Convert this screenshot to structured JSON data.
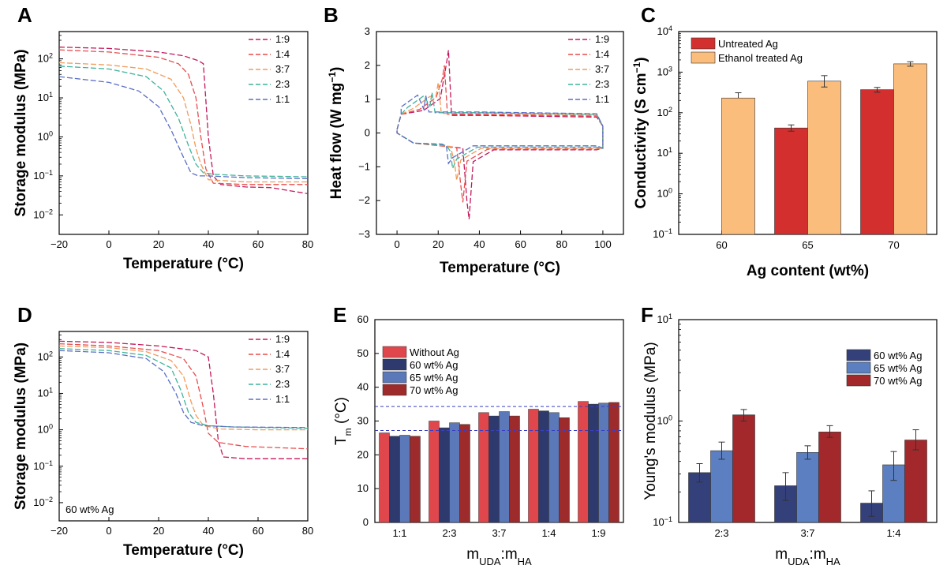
{
  "figure": {
    "panel_labels": [
      "A",
      "B",
      "C",
      "D",
      "E",
      "F"
    ]
  },
  "chart_data": [
    {
      "panel": "A",
      "type": "line",
      "xlabel": "Temperature (°C)",
      "ylabel": "Storage modulus (MPa)",
      "xlim": [
        -20,
        80
      ],
      "ylim_log10": [
        -2.5,
        2.7
      ],
      "yscale": "log",
      "xticks": [
        "−20",
        "0",
        "20",
        "40",
        "60",
        "80"
      ],
      "legend": [
        "1:9",
        "1:4",
        "3:7",
        "2:3",
        "1:1"
      ],
      "colors": [
        "#c2185b",
        "#e84c4c",
        "#f39a5a",
        "#3fb39a",
        "#5b6ec4"
      ],
      "series": [
        {
          "name": "1:9",
          "x": [
            -20,
            0,
            20,
            30,
            36,
            38,
            40,
            42,
            45,
            55,
            65,
            80
          ],
          "y": [
            200,
            185,
            150,
            120,
            90,
            75,
            1.0,
            0.1,
            0.06,
            0.052,
            0.05,
            0.035
          ]
        },
        {
          "name": "1:4",
          "x": [
            -20,
            0,
            20,
            28,
            32,
            35,
            37,
            39,
            42,
            55,
            80
          ],
          "y": [
            170,
            150,
            110,
            75,
            40,
            10,
            1.0,
            0.15,
            0.065,
            0.06,
            0.06
          ]
        },
        {
          "name": "3:7",
          "x": [
            -20,
            0,
            15,
            25,
            30,
            33,
            35,
            37,
            40,
            55,
            80
          ],
          "y": [
            80,
            70,
            55,
            30,
            10,
            2.0,
            0.5,
            0.2,
            0.08,
            0.07,
            0.07
          ]
        },
        {
          "name": "2:3",
          "x": [
            -20,
            0,
            15,
            22,
            28,
            32,
            35,
            38,
            42,
            55,
            80
          ],
          "y": [
            65,
            55,
            35,
            15,
            3,
            0.6,
            0.2,
            0.12,
            0.11,
            0.1,
            0.095
          ]
        },
        {
          "name": "1:1",
          "x": [
            -20,
            0,
            12,
            20,
            25,
            30,
            33,
            36,
            40,
            55,
            80
          ],
          "y": [
            35,
            25,
            15,
            6,
            1.5,
            0.3,
            0.12,
            0.1,
            0.1,
            0.09,
            0.085
          ]
        }
      ]
    },
    {
      "panel": "B",
      "type": "line",
      "xlabel": "Temperature (°C)",
      "ylabel": "Heat flow (W mg-1)",
      "xlim": [
        -10,
        110
      ],
      "ylim": [
        -3,
        3
      ],
      "xticks": [
        "0",
        "20",
        "40",
        "60",
        "80",
        "100"
      ],
      "yticks": [
        "−3",
        "−2",
        "−1",
        "0",
        "1",
        "2",
        "3"
      ],
      "legend": [
        "1:9",
        "1:4",
        "3:7",
        "2:3",
        "1:1"
      ],
      "colors": [
        "#c2185b",
        "#e84c4c",
        "#f39a5a",
        "#3fb39a",
        "#5b6ec4"
      ],
      "peaks": [
        {
          "name": "1:9",
          "heat_peak_t": 25,
          "heat_peak_v": 2.45,
          "cool_peak_t": 35,
          "cool_peak_v": -2.55,
          "base_hi": 0.52,
          "base_lo": -0.5
        },
        {
          "name": "1:4",
          "heat_peak_t": 23,
          "heat_peak_v": 2.0,
          "cool_peak_t": 32,
          "cool_peak_v": -2.05,
          "base_hi": 0.55,
          "base_lo": -0.48
        },
        {
          "name": "3:7",
          "heat_peak_t": 20,
          "heat_peak_v": 1.5,
          "cool_peak_t": 29,
          "cool_peak_v": -1.4,
          "base_hi": 0.58,
          "base_lo": -0.45
        },
        {
          "name": "2:3",
          "heat_peak_t": 17,
          "heat_peak_v": 1.2,
          "cool_peak_t": 27,
          "cool_peak_v": -1.05,
          "base_hi": 0.6,
          "base_lo": -0.42
        },
        {
          "name": "1:1",
          "heat_peak_t": 14,
          "heat_peak_v": 1.1,
          "cool_peak_t": 25,
          "cool_peak_v": -0.9,
          "base_hi": 0.62,
          "base_lo": -0.38
        }
      ]
    },
    {
      "panel": "C",
      "type": "bar",
      "xlabel": "Ag content (wt%)",
      "ylabel": "Conductivity (S cm-1)",
      "yscale": "log",
      "ylim_log10": [
        -1,
        4
      ],
      "categories": [
        "60",
        "65",
        "70"
      ],
      "series": [
        {
          "name": "Untreated Ag",
          "color": "#d32f2f",
          "values": [
            null,
            42,
            370
          ],
          "err_lo": [
            null,
            35,
            320
          ],
          "err_hi": [
            null,
            50,
            420
          ]
        },
        {
          "name": "Ethanol treated Ag",
          "color": "#fbbd7c",
          "values": [
            230,
            600,
            1600
          ],
          "err_lo": [
            null,
            430,
            1400
          ],
          "err_hi": [
            310,
            820,
            1800
          ]
        }
      ]
    },
    {
      "panel": "D",
      "type": "line",
      "xlabel": "Temperature (°C)",
      "ylabel": "Storage modulus (MPa)",
      "xlim": [
        -20,
        80
      ],
      "ylim_log10": [
        -2.5,
        2.7
      ],
      "yscale": "log",
      "xticks": [
        "−20",
        "0",
        "20",
        "40",
        "60",
        "80"
      ],
      "annotation": "60 wt% Ag",
      "legend": [
        "1:9",
        "1:4",
        "3:7",
        "2:3",
        "1:1"
      ],
      "colors": [
        "#c2185b",
        "#e84c4c",
        "#f39a5a",
        "#3fb39a",
        "#5b6ec4"
      ],
      "series": [
        {
          "name": "1:9",
          "x": [
            -20,
            0,
            20,
            35,
            40,
            42,
            44,
            46,
            55,
            70,
            80
          ],
          "y": [
            270,
            250,
            200,
            150,
            100,
            10,
            0.5,
            0.18,
            0.16,
            0.16,
            0.16
          ]
        },
        {
          "name": "1:4",
          "x": [
            -20,
            0,
            20,
            30,
            35,
            38,
            40,
            44,
            55,
            80
          ],
          "y": [
            230,
            200,
            150,
            90,
            30,
            4,
            0.8,
            0.45,
            0.35,
            0.3
          ]
        },
        {
          "name": "3:7",
          "x": [
            -20,
            0,
            15,
            25,
            30,
            33,
            35,
            38,
            45,
            60,
            80
          ],
          "y": [
            200,
            180,
            140,
            80,
            30,
            6,
            2.5,
            1.3,
            1.05,
            1.0,
            1.0
          ]
        },
        {
          "name": "2:3",
          "x": [
            -20,
            0,
            15,
            25,
            29,
            32,
            35,
            40,
            50,
            80
          ],
          "y": [
            170,
            150,
            110,
            50,
            12,
            3,
            1.6,
            1.3,
            1.2,
            1.1
          ]
        },
        {
          "name": "1:1",
          "x": [
            -20,
            0,
            15,
            22,
            27,
            30,
            33,
            38,
            50,
            80
          ],
          "y": [
            150,
            130,
            90,
            40,
            10,
            3,
            1.6,
            1.3,
            1.2,
            1.15
          ]
        }
      ]
    },
    {
      "panel": "E",
      "type": "bar",
      "xlabel": "mUDA:mHA",
      "ylabel": "Tm (°C)",
      "ylim": [
        0,
        60
      ],
      "yticks": [
        "0",
        "10",
        "20",
        "30",
        "40",
        "50",
        "60"
      ],
      "categories": [
        "1:1",
        "2:3",
        "3:7",
        "1:4",
        "1:9"
      ],
      "series": [
        {
          "name": "Without Ag",
          "color": "#e0474c",
          "values": [
            26.5,
            30,
            32.5,
            33.5,
            35.8
          ]
        },
        {
          "name": "60 wt% Ag",
          "color": "#2e3a6e",
          "values": [
            25.5,
            28,
            31.5,
            33,
            35
          ]
        },
        {
          "name": "65 wt% Ag",
          "color": "#5b78b8",
          "values": [
            25.8,
            29.5,
            32.8,
            32.5,
            35.3
          ]
        },
        {
          "name": "70 wt% Ag",
          "color": "#9e2b2b",
          "values": [
            25.5,
            29,
            31.5,
            31,
            35.5
          ]
        }
      ],
      "reference_lines": [
        34.3,
        27.2
      ]
    },
    {
      "panel": "F",
      "type": "bar",
      "xlabel": "mUDA:mHA",
      "ylabel": "Young's modulus (MPa)",
      "yscale": "log",
      "ylim_log10": [
        -1,
        1
      ],
      "categories": [
        "2:3",
        "3:7",
        "1:4"
      ],
      "series": [
        {
          "name": "60 wt% Ag",
          "color": "#34407a",
          "values": [
            0.31,
            0.23,
            0.155
          ],
          "err_lo": [
            0.25,
            0.165,
            0.115
          ],
          "err_hi": [
            0.38,
            0.31,
            0.205
          ]
        },
        {
          "name": "65 wt% Ag",
          "color": "#5b7fc0",
          "values": [
            0.51,
            0.49,
            0.37
          ],
          "err_lo": [
            0.42,
            0.42,
            0.26
          ],
          "err_hi": [
            0.62,
            0.57,
            0.5
          ]
        },
        {
          "name": "70 wt% Ag",
          "color": "#a3282c",
          "values": [
            1.15,
            0.78,
            0.65
          ],
          "err_lo": [
            1.0,
            0.69,
            0.52
          ],
          "err_hi": [
            1.3,
            0.9,
            0.82
          ]
        }
      ]
    }
  ]
}
